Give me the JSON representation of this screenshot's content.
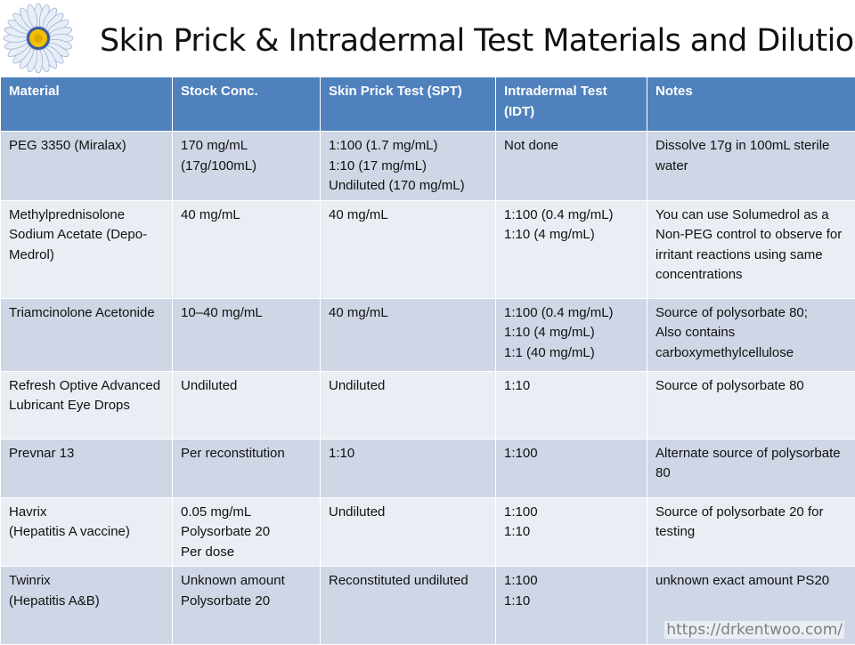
{
  "title": "Skin Prick & Intradermal Test Materials and Dilutions",
  "logo": {
    "icon": "sunflower-icon",
    "petal_color": "#e8eef8",
    "center_color": "#f2c200"
  },
  "colors": {
    "header_bg": "#4f81bd",
    "row_odd": "#cfd7e6",
    "row_even": "#e9edf4"
  },
  "table": {
    "headers": [
      "Material",
      "Stock Conc.",
      "Skin Prick Test (SPT)",
      "Intradermal Test (IDT)",
      "Notes"
    ],
    "rows": [
      {
        "material": [
          "PEG 3350 (Miralax)"
        ],
        "stock": [
          "170 mg/mL",
          "(17g/100mL)"
        ],
        "spt": [
          "1:100 (1.7 mg/mL)",
          "1:10 (17 mg/mL)",
          "Undiluted (170 mg/mL)"
        ],
        "idt": [
          "Not done"
        ],
        "notes": [
          "Dissolve 17g in 100mL sterile water"
        ]
      },
      {
        "material": [
          "Methylprednisolone Sodium Acetate (Depo-Medrol)"
        ],
        "stock": [
          "40 mg/mL"
        ],
        "spt": [
          "40 mg/mL"
        ],
        "idt": [
          "1:100 (0.4 mg/mL)",
          "1:10 (4 mg/mL)"
        ],
        "notes": [
          "You can use Solumedrol as a Non-PEG control to observe for irritant reactions using same concentrations"
        ]
      },
      {
        "material": [
          "Triamcinolone Acetonide"
        ],
        "stock": [
          "10–40 mg/mL"
        ],
        "spt": [
          "40 mg/mL"
        ],
        "idt": [
          "1:100 (0.4 mg/mL)",
          "1:10 (4 mg/mL)",
          "1:1 (40 mg/mL)"
        ],
        "notes": [
          "Source of polysorbate 80;",
          "Also contains carboxymethylcellulose"
        ]
      },
      {
        "material": [
          "Refresh Optive Advanced Lubricant Eye Drops"
        ],
        "stock": [
          "Undiluted"
        ],
        "spt": [
          "Undiluted"
        ],
        "idt": [
          "1:10"
        ],
        "notes": [
          "Source of polysorbate 80"
        ]
      },
      {
        "material": [
          "Prevnar 13"
        ],
        "stock": [
          "Per reconstitution"
        ],
        "spt": [
          "1:10"
        ],
        "idt": [
          "1:100"
        ],
        "notes": [
          "Alternate source of polysorbate 80"
        ]
      },
      {
        "material": [
          "Havrix",
          "(Hepatitis A vaccine)"
        ],
        "stock": [
          "0.05 mg/mL",
          "Polysorbate 20",
          "Per dose"
        ],
        "spt": [
          "Undiluted"
        ],
        "idt": [
          "1:100",
          "1:10"
        ],
        "notes": [
          "Source of polysorbate 20 for testing"
        ]
      },
      {
        "material": [
          "Twinrix",
          "(Hepatitis A&B)"
        ],
        "stock": [
          "Unknown amount",
          "Polysorbate 20"
        ],
        "spt": [
          "Reconstituted undiluted"
        ],
        "idt": [
          "1:100",
          "1:10"
        ],
        "notes": [
          "unknown exact amount PS20"
        ]
      }
    ]
  },
  "watermark": "https://drkentwoo.com/"
}
